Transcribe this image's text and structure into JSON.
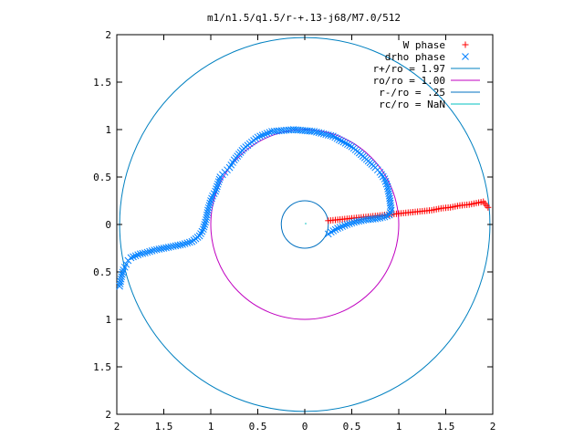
{
  "chart_data": {
    "type": "scatter",
    "title": "m1/n1.5/q1.5/r-+.13-j68/M7.0/512",
    "xlabel": "",
    "ylabel": "",
    "xlim": [
      -2,
      2
    ],
    "ylim": [
      -2,
      2
    ],
    "x_ticks": [
      "2",
      "1.5",
      "1",
      "0.5",
      "0",
      "0.5",
      "1",
      "1.5",
      "2"
    ],
    "y_ticks": [
      "2",
      "1.5",
      "1",
      "0.5",
      "0",
      "0.5",
      "1",
      "1.5",
      "2"
    ],
    "grid": false,
    "legend_position": "top-right",
    "legend": [
      {
        "label": "W phase",
        "kind": "plus",
        "color": "#ff0000"
      },
      {
        "label": "drho phase",
        "kind": "cross",
        "color": "#0080ff"
      },
      {
        "label": "r+/ro = 1.97",
        "kind": "line",
        "color": "#0080c0"
      },
      {
        "label": "ro/ro = 1.00",
        "kind": "line",
        "color": "#c000c0"
      },
      {
        "label": "r-/ro = .25",
        "kind": "line",
        "color": "#0070c0"
      },
      {
        "label": "rc/ro = NaN",
        "kind": "line",
        "color": "#00c0c0"
      }
    ],
    "circles": [
      {
        "radius": 1.97,
        "color": "#0080c0"
      },
      {
        "radius": 1.0,
        "color": "#c000c0"
      },
      {
        "radius": 0.25,
        "color": "#0070c0"
      }
    ],
    "series": [
      {
        "name": "W phase",
        "color": "#ff0000",
        "marker": "plus",
        "x": [
          0.25,
          0.35,
          0.45,
          0.55,
          0.65,
          0.75,
          0.85,
          0.95,
          1.05,
          1.15,
          1.25,
          1.35,
          1.45,
          1.55,
          1.65,
          1.75,
          1.85,
          1.9,
          1.95
        ],
        "y": [
          0.04,
          0.05,
          0.06,
          0.07,
          0.08,
          0.09,
          0.1,
          0.11,
          0.12,
          0.13,
          0.14,
          0.15,
          0.17,
          0.18,
          0.2,
          0.21,
          0.23,
          0.24,
          0.18
        ]
      },
      {
        "name": "drho phase",
        "color": "#0080ff",
        "marker": "cross",
        "x": [
          -1.97,
          -1.95,
          -1.93,
          -1.9,
          -1.88,
          -1.85,
          -1.8,
          -1.75,
          -1.7,
          -1.6,
          -1.5,
          -1.4,
          -1.3,
          -1.2,
          -1.12,
          -1.08,
          -1.05,
          -1.03,
          -1.0,
          -0.98,
          -0.95,
          -0.9,
          -0.85,
          -0.8,
          -0.75,
          -0.65,
          -0.5,
          -0.35,
          -0.12,
          0.1,
          0.3,
          0.5,
          0.62,
          0.75,
          0.8,
          0.85,
          0.88,
          0.9,
          0.92,
          0.9,
          0.85,
          0.75,
          0.65,
          0.55,
          0.45,
          0.35,
          0.28,
          0.25
        ],
        "y": [
          -0.65,
          -0.55,
          -0.48,
          -0.42,
          -0.38,
          -0.35,
          -0.33,
          -0.31,
          -0.3,
          -0.27,
          -0.25,
          -0.23,
          -0.21,
          -0.18,
          -0.12,
          -0.05,
          0.05,
          0.15,
          0.25,
          0.3,
          0.35,
          0.5,
          0.55,
          0.6,
          0.68,
          0.8,
          0.92,
          0.98,
          1.0,
          0.98,
          0.93,
          0.82,
          0.72,
          0.6,
          0.55,
          0.48,
          0.4,
          0.3,
          0.15,
          0.1,
          0.08,
          0.06,
          0.05,
          0.03,
          0.0,
          -0.04,
          -0.08,
          -0.1
        ]
      }
    ]
  }
}
